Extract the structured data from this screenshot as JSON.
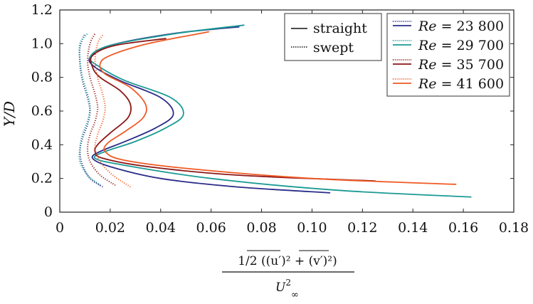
{
  "chart_data": {
    "type": "line",
    "title": "",
    "xlabel": "1/2 (̅(u′)² + ̅(v′)²) / U∞²",
    "xlabel_numerator": "1/2 ((u′)² + (v′)²)",
    "xlabel_denominator": "U",
    "xlabel_denominator_sup": "2",
    "xlabel_denominator_sub": "∞",
    "ylabel": "Y/D",
    "xlim": [
      0,
      0.18
    ],
    "ylim": [
      0,
      1.2
    ],
    "xticks": [
      0,
      0.02,
      0.04,
      0.06,
      0.08,
      0.1,
      0.12,
      0.14,
      0.16,
      0.18
    ],
    "xtick_labels": [
      "0",
      "0.02",
      "0.04",
      "0.06",
      "0.08",
      "0.10",
      "0.12",
      "0.14",
      "0.16",
      "0.18"
    ],
    "yticks": [
      0,
      0.2,
      0.4,
      0.6,
      0.8,
      1.0,
      1.2
    ],
    "ytick_labels": [
      "0",
      "0.2",
      "0.4",
      "0.6",
      "0.8",
      "1.0",
      "1.2"
    ],
    "legend_style": {
      "position": "top-right",
      "entries": [
        {
          "label": "straight",
          "dash": "solid"
        },
        {
          "label": "swept",
          "dash": "dotted"
        }
      ]
    },
    "legend_re": {
      "position": "top-right",
      "prefix": "Re",
      "entries": [
        {
          "label": "= 23 800",
          "color": "#2b2b8a"
        },
        {
          "label": "= 29 700",
          "color": "#1a9a93"
        },
        {
          "label": "= 35 700",
          "color": "#8b1515"
        },
        {
          "label": "= 41 600",
          "color": "#ef5a24"
        }
      ]
    },
    "series": [
      {
        "name": "Re = 23 800 straight",
        "color": "#2b2b8a",
        "dash": "solid",
        "points": [
          [
            0.107,
            0.115
          ],
          [
            0.07,
            0.15
          ],
          [
            0.04,
            0.2
          ],
          [
            0.02,
            0.27
          ],
          [
            0.013,
            0.32
          ],
          [
            0.016,
            0.36
          ],
          [
            0.026,
            0.42
          ],
          [
            0.038,
            0.5
          ],
          [
            0.045,
            0.58
          ],
          [
            0.04,
            0.68
          ],
          [
            0.024,
            0.78
          ],
          [
            0.014,
            0.86
          ],
          [
            0.012,
            0.92
          ],
          [
            0.02,
            0.99
          ],
          [
            0.045,
            1.06
          ],
          [
            0.071,
            1.1
          ]
        ]
      },
      {
        "name": "Re = 29 700 straight",
        "color": "#1a9a93",
        "dash": "solid",
        "points": [
          [
            0.163,
            0.09
          ],
          [
            0.11,
            0.13
          ],
          [
            0.06,
            0.2
          ],
          [
            0.025,
            0.28
          ],
          [
            0.014,
            0.32
          ],
          [
            0.018,
            0.36
          ],
          [
            0.03,
            0.42
          ],
          [
            0.042,
            0.5
          ],
          [
            0.049,
            0.58
          ],
          [
            0.044,
            0.68
          ],
          [
            0.026,
            0.78
          ],
          [
            0.016,
            0.86
          ],
          [
            0.012,
            0.92
          ],
          [
            0.02,
            0.99
          ],
          [
            0.046,
            1.06
          ],
          [
            0.073,
            1.11
          ]
        ]
      },
      {
        "name": "Re = 35 700 straight",
        "color": "#8b1515",
        "dash": "solid",
        "points": [
          [
            0.125,
            0.185
          ],
          [
            0.07,
            0.22
          ],
          [
            0.035,
            0.27
          ],
          [
            0.017,
            0.32
          ],
          [
            0.014,
            0.36
          ],
          [
            0.015,
            0.4
          ],
          [
            0.02,
            0.47
          ],
          [
            0.027,
            0.56
          ],
          [
            0.028,
            0.64
          ],
          [
            0.024,
            0.72
          ],
          [
            0.016,
            0.8
          ],
          [
            0.013,
            0.86
          ],
          [
            0.013,
            0.93
          ],
          [
            0.022,
            0.99
          ],
          [
            0.042,
            1.03
          ]
        ]
      },
      {
        "name": "Re = 41 600 straight",
        "color": "#ef5a24",
        "dash": "solid",
        "points": [
          [
            0.157,
            0.165
          ],
          [
            0.1,
            0.2
          ],
          [
            0.05,
            0.26
          ],
          [
            0.025,
            0.31
          ],
          [
            0.018,
            0.36
          ],
          [
            0.019,
            0.41
          ],
          [
            0.026,
            0.48
          ],
          [
            0.033,
            0.56
          ],
          [
            0.034,
            0.64
          ],
          [
            0.028,
            0.74
          ],
          [
            0.018,
            0.82
          ],
          [
            0.016,
            0.88
          ],
          [
            0.02,
            0.93
          ],
          [
            0.035,
            1.0
          ],
          [
            0.059,
            1.07
          ]
        ]
      },
      {
        "name": "Re = 23 800 swept",
        "color": "#2b2b8a",
        "dash": "dotted",
        "points": [
          [
            0.017,
            0.15
          ],
          [
            0.012,
            0.2
          ],
          [
            0.009,
            0.28
          ],
          [
            0.008,
            0.36
          ],
          [
            0.009,
            0.44
          ],
          [
            0.011,
            0.52
          ],
          [
            0.012,
            0.6
          ],
          [
            0.011,
            0.68
          ],
          [
            0.009,
            0.78
          ],
          [
            0.008,
            0.88
          ],
          [
            0.008,
            0.98
          ],
          [
            0.01,
            1.06
          ]
        ]
      },
      {
        "name": "Re = 29 700 swept",
        "color": "#1a9a93",
        "dash": "dotted",
        "points": [
          [
            0.016,
            0.16
          ],
          [
            0.011,
            0.22
          ],
          [
            0.008,
            0.3
          ],
          [
            0.008,
            0.38
          ],
          [
            0.009,
            0.46
          ],
          [
            0.011,
            0.54
          ],
          [
            0.012,
            0.62
          ],
          [
            0.011,
            0.7
          ],
          [
            0.009,
            0.8
          ],
          [
            0.008,
            0.9
          ],
          [
            0.008,
            1.0
          ],
          [
            0.011,
            1.06
          ]
        ]
      },
      {
        "name": "Re = 35 700 swept",
        "color": "#8b1515",
        "dash": "dotted",
        "points": [
          [
            0.022,
            0.16
          ],
          [
            0.016,
            0.22
          ],
          [
            0.012,
            0.3
          ],
          [
            0.011,
            0.38
          ],
          [
            0.012,
            0.46
          ],
          [
            0.014,
            0.54
          ],
          [
            0.015,
            0.62
          ],
          [
            0.014,
            0.7
          ],
          [
            0.012,
            0.8
          ],
          [
            0.011,
            0.9
          ],
          [
            0.012,
            1.0
          ],
          [
            0.014,
            1.06
          ]
        ]
      },
      {
        "name": "Re = 41 600 swept",
        "color": "#ef5a24",
        "dash": "dotted",
        "points": [
          [
            0.028,
            0.15
          ],
          [
            0.021,
            0.22
          ],
          [
            0.016,
            0.3
          ],
          [
            0.014,
            0.38
          ],
          [
            0.015,
            0.46
          ],
          [
            0.017,
            0.54
          ],
          [
            0.018,
            0.62
          ],
          [
            0.017,
            0.7
          ],
          [
            0.015,
            0.8
          ],
          [
            0.014,
            0.9
          ],
          [
            0.015,
            1.0
          ],
          [
            0.017,
            1.05
          ]
        ]
      }
    ]
  }
}
